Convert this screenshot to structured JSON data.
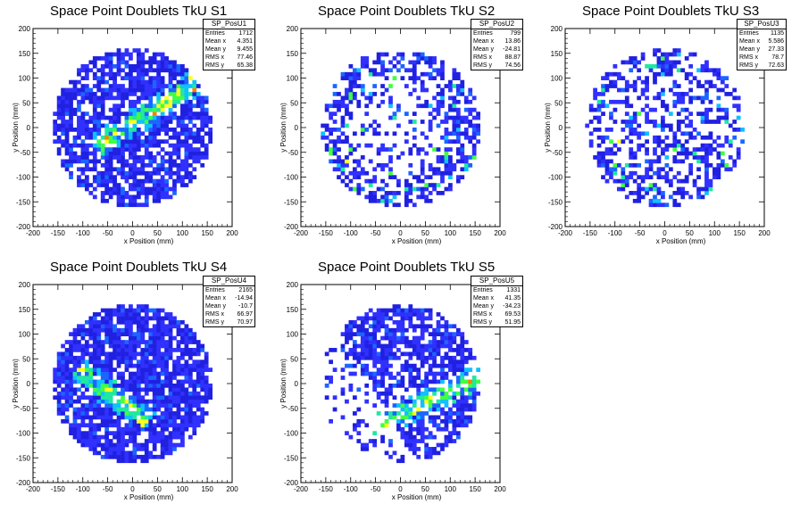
{
  "chart_data": [
    {
      "type": "heatmap",
      "title": "Space Point Doublets TkU S1",
      "xlabel": "x Position (mm)",
      "ylabel": "y Position (mm)",
      "xlim": [
        -200,
        200
      ],
      "ylim": [
        -200,
        200
      ],
      "xticks": [
        -200,
        -150,
        -100,
        -50,
        0,
        50,
        100,
        150,
        200
      ],
      "yticks": [
        -200,
        -150,
        -100,
        -50,
        0,
        50,
        100,
        150,
        200
      ],
      "stats": {
        "name": "SP_PosU1",
        "rows": [
          [
            "Entries",
            "1712"
          ],
          [
            "Mean x",
            "4.351"
          ],
          [
            "Mean y",
            "9.455"
          ],
          [
            "RMS x",
            "77.46"
          ],
          [
            "RMS y",
            "65.38"
          ]
        ]
      },
      "density": "uniform disk, diagonal band",
      "band": [
        [
          -60,
          -30
        ],
        [
          110,
          80
        ]
      ]
    },
    {
      "type": "heatmap",
      "title": "Space Point Doublets TkU S2",
      "xlabel": "x Position (mm)",
      "ylabel": "y Position (mm)",
      "xlim": [
        -200,
        200
      ],
      "ylim": [
        -200,
        200
      ],
      "xticks": [
        -200,
        -150,
        -100,
        -50,
        0,
        50,
        100,
        150,
        200
      ],
      "yticks": [
        -200,
        -150,
        -100,
        -50,
        0,
        50,
        100,
        150,
        200
      ],
      "stats": {
        "name": "SP_PosU2",
        "rows": [
          [
            "Entries",
            "799"
          ],
          [
            "Mean x",
            "13.86"
          ],
          [
            "Mean y",
            "-24.81"
          ],
          [
            "RMS x",
            "88.87"
          ],
          [
            "RMS y",
            "74.56"
          ]
        ]
      },
      "density": "sparse ring, hot spots right"
    },
    {
      "type": "heatmap",
      "title": "Space Point Doublets TkU S3",
      "xlabel": "x Position (mm)",
      "ylabel": "y Position (mm)",
      "xlim": [
        -200,
        200
      ],
      "ylim": [
        -200,
        200
      ],
      "xticks": [
        -200,
        -150,
        -100,
        -50,
        0,
        50,
        100,
        150,
        200
      ],
      "yticks": [
        -200,
        -150,
        -100,
        -50,
        0,
        50,
        100,
        150,
        200
      ],
      "stats": {
        "name": "SP_PosU3",
        "rows": [
          [
            "Entries",
            "1135"
          ],
          [
            "Mean x",
            "5.586"
          ],
          [
            "Mean y",
            "27.33"
          ],
          [
            "RMS x",
            "78.7"
          ],
          [
            "RMS y",
            "72.63"
          ]
        ]
      },
      "density": "sparse disk"
    },
    {
      "type": "heatmap",
      "title": "Space Point Doublets TkU S4",
      "xlabel": "x Position (mm)",
      "ylabel": "y Position (mm)",
      "xlim": [
        -200,
        200
      ],
      "ylim": [
        -200,
        200
      ],
      "xticks": [
        -200,
        -150,
        -100,
        -50,
        0,
        50,
        100,
        150,
        200
      ],
      "yticks": [
        -200,
        -150,
        -100,
        -50,
        0,
        50,
        100,
        150,
        200
      ],
      "stats": {
        "name": "SP_PosU4",
        "rows": [
          [
            "Entries",
            "2165"
          ],
          [
            "Mean x",
            "-14.94"
          ],
          [
            "Mean y",
            "-10.7"
          ],
          [
            "RMS x",
            "66.97"
          ],
          [
            "RMS y",
            "70.97"
          ]
        ]
      },
      "density": "dense disk, band lower-left",
      "band": [
        [
          -100,
          20
        ],
        [
          20,
          -70
        ]
      ]
    },
    {
      "type": "heatmap",
      "title": "Space Point Doublets TkU S5",
      "xlabel": "x Position (mm)",
      "ylabel": "y Position (mm)",
      "xlim": [
        -200,
        200
      ],
      "ylim": [
        -200,
        200
      ],
      "xticks": [
        -200,
        -150,
        -100,
        -50,
        0,
        50,
        100,
        150,
        200
      ],
      "yticks": [
        -200,
        -150,
        -100,
        -50,
        0,
        50,
        100,
        150,
        200
      ],
      "stats": {
        "name": "SP_PosU5",
        "rows": [
          [
            "Entries",
            "1331"
          ],
          [
            "Mean x",
            "41.35"
          ],
          [
            "Mean y",
            "-34.23"
          ],
          [
            "RMS x",
            "69.53"
          ],
          [
            "RMS y",
            "51.95"
          ]
        ]
      },
      "density": "dense lower-right, band",
      "band": [
        [
          -40,
          -80
        ],
        [
          150,
          10
        ]
      ]
    }
  ],
  "palette": [
    "#3030ff",
    "#2020e0",
    "#1a66ff",
    "#10c0ff",
    "#20e8a0",
    "#40ff40",
    "#ffff20",
    "#ff8000",
    "#ff2000"
  ]
}
